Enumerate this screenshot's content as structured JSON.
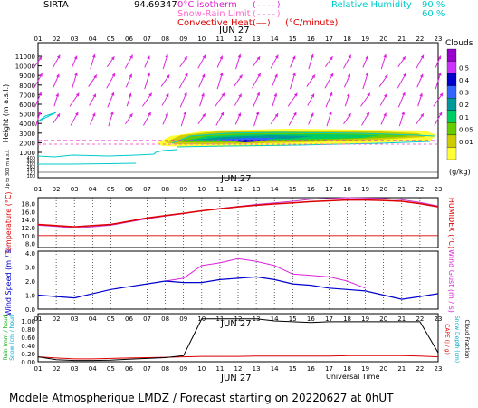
{
  "header": {
    "site": "SIRTA",
    "coord": "94.69347",
    "legend_left": [
      {
        "label": "0°C isotherm",
        "sample": "(----)",
        "color": "#dd22cc"
      },
      {
        "label": "Snow-Rain Limit",
        "sample": "(----)",
        "color": "#ff66cc"
      },
      {
        "label": "Convective Heat.",
        "sample": "(——)",
        "unit": "(°C/minute)",
        "color": "#dd0000"
      }
    ],
    "legend_right": {
      "label": "Relative Humidity",
      "v1": "90 %",
      "v2": "60 %",
      "color": "#00cccc"
    }
  },
  "hours": [
    "01",
    "02",
    "03",
    "04",
    "05",
    "06",
    "07",
    "08",
    "09",
    "10",
    "11",
    "12",
    "13",
    "14",
    "15",
    "16",
    "17",
    "18",
    "19",
    "20",
    "21",
    "22",
    "23"
  ],
  "dates": {
    "p1": "JUN 27",
    "p2": "JUN 27",
    "p5": "JUN 27",
    "bottom": "JUN 27"
  },
  "axes": {
    "height_label": "Height  (m a.s.l.)",
    "height_ticks": [
      "11000",
      "10000",
      "9000",
      "8000",
      "7000",
      "6000",
      "5000",
      "4000",
      "3000",
      "2000",
      "1000"
    ],
    "low_ticks": [
      "400",
      "300",
      "200",
      "160",
      "140",
      "120",
      "100"
    ],
    "low_label": "Up to 300 m a.s.l.",
    "temp_label": "Temperature (°C)",
    "temp_ticks": [
      "18.0",
      "16.0",
      "14.0",
      "12.0",
      "10.0",
      "8.0"
    ],
    "humidex_label": "HUMIDEX (°C)",
    "wind_label": "Wind Speed (m / s)",
    "wind_ticks": [
      "4.0",
      "3.0",
      "2.0",
      "1.0",
      "0.0"
    ],
    "gust_label": "Wind Gust (m / s)",
    "rain_label": "Rain (mm / hour)",
    "snow_label": "Snow (cm / hour)",
    "precip_ticks": [
      "1.00",
      "0.80",
      "0.60",
      "0.40",
      "0.20",
      "0.00"
    ],
    "cape_label": "CAPE (J / g)",
    "snowdepth_label": "Snow Depth (cm)",
    "cloudfrac_label": "Cloud Fraction",
    "universal_time": "Universal Time"
  },
  "clouds": {
    "title": "Clouds",
    "unit": "(g/kg)",
    "levels": [
      "0.5",
      "0.4",
      "0.3",
      "0.2",
      "0.1",
      "0.05",
      "0.01"
    ],
    "colors": [
      "#9900cc",
      "#cc33ff",
      "#0000cc",
      "#3366ff",
      "#009999",
      "#00cc66",
      "#66cc00",
      "#cccc00",
      "#ffff33"
    ]
  },
  "footer": "Modele Atmospherique LMDZ / Forecast starting on 20220627 at 0hUT",
  "chart_data": {
    "type": "line",
    "x": [
      1,
      2,
      3,
      4,
      5,
      6,
      7,
      8,
      9,
      10,
      11,
      12,
      13,
      14,
      15,
      16,
      17,
      18,
      19,
      20,
      21,
      22,
      23
    ],
    "series_temperature": {
      "values": [
        12.8,
        12.5,
        12.2,
        12.5,
        12.8,
        13.6,
        14.4,
        15.0,
        15.6,
        16.2,
        16.7,
        17.2,
        17.6,
        17.9,
        18.2,
        18.5,
        18.7,
        18.9,
        18.9,
        18.8,
        18.6,
        18.0,
        17.2
      ],
      "color": "#dd0000"
    },
    "series_humidex": {
      "values": [
        12.6,
        12.3,
        11.9,
        12.2,
        12.6,
        13.4,
        14.2,
        14.9,
        15.5,
        16.2,
        16.8,
        17.3,
        17.8,
        18.2,
        18.6,
        19.1,
        19.3,
        19.5,
        19.4,
        19.3,
        19.0,
        18.3,
        17.4
      ],
      "color": "#cc33cc"
    },
    "temp_range": [
      7.0,
      19.5
    ],
    "series_wind_speed": {
      "values": [
        1.0,
        0.9,
        0.8,
        1.1,
        1.4,
        1.6,
        1.8,
        2.0,
        1.9,
        1.9,
        2.1,
        2.2,
        2.3,
        2.1,
        1.8,
        1.7,
        1.5,
        1.4,
        1.3,
        1.0,
        0.7,
        0.9,
        1.1
      ],
      "color": "#0000cc"
    },
    "series_wind_gust": {
      "values": [
        null,
        null,
        null,
        null,
        null,
        null,
        null,
        2.0,
        2.2,
        3.1,
        3.3,
        3.6,
        3.4,
        3.1,
        2.5,
        2.4,
        2.3,
        2.0,
        1.5,
        null,
        null,
        null,
        null
      ],
      "color": "#dd22dd"
    },
    "wind_range": [
      0,
      4.0
    ],
    "series_cape": {
      "values": [
        0.12,
        0.09,
        0.07,
        0.07,
        0.08,
        0.09,
        0.1,
        0.11,
        0.12,
        0.13,
        0.13,
        0.13,
        0.14,
        0.14,
        0.14,
        0.14,
        0.14,
        0.15,
        0.15,
        0.15,
        0.15,
        0.14,
        0.12
      ],
      "color": "#dd0000"
    },
    "series_cloud_fraction": {
      "values": [
        0.12,
        0.05,
        0.03,
        0.03,
        0.04,
        0.06,
        0.08,
        0.1,
        0.15,
        1.05,
        1.05,
        1.05,
        1.05,
        1.0,
        0.98,
        0.96,
        0.98,
        0.98,
        0.98,
        0.98,
        0.98,
        0.98,
        0.22
      ],
      "color": "#000000"
    },
    "precip_range": [
      0,
      1.0
    ]
  }
}
